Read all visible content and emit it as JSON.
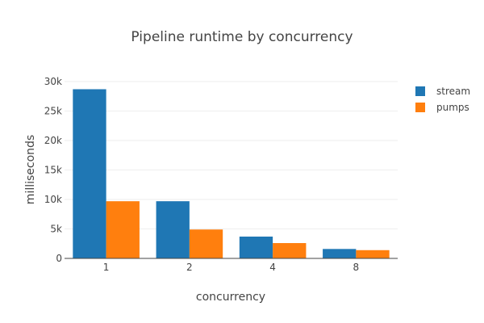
{
  "chart_data": {
    "type": "bar",
    "title": "Pipeline runtime by concurrency",
    "xlabel": "concurrency",
    "ylabel": "milliseconds",
    "categories": [
      "1",
      "2",
      "4",
      "8"
    ],
    "series": [
      {
        "name": "stream",
        "color": "#1f77b4",
        "values": [
          28700,
          9700,
          3700,
          1600
        ]
      },
      {
        "name": "pumps",
        "color": "#ff7f0e",
        "values": [
          9700,
          4900,
          2600,
          1400
        ]
      }
    ],
    "ylim": [
      0,
      30000
    ],
    "yticks": [
      0,
      5000,
      10000,
      15000,
      20000,
      25000,
      30000
    ],
    "ytick_labels": [
      "0",
      "5k",
      "10k",
      "15k",
      "20k",
      "25k",
      "30k"
    ],
    "grid": true,
    "legend_position": "top-right"
  }
}
